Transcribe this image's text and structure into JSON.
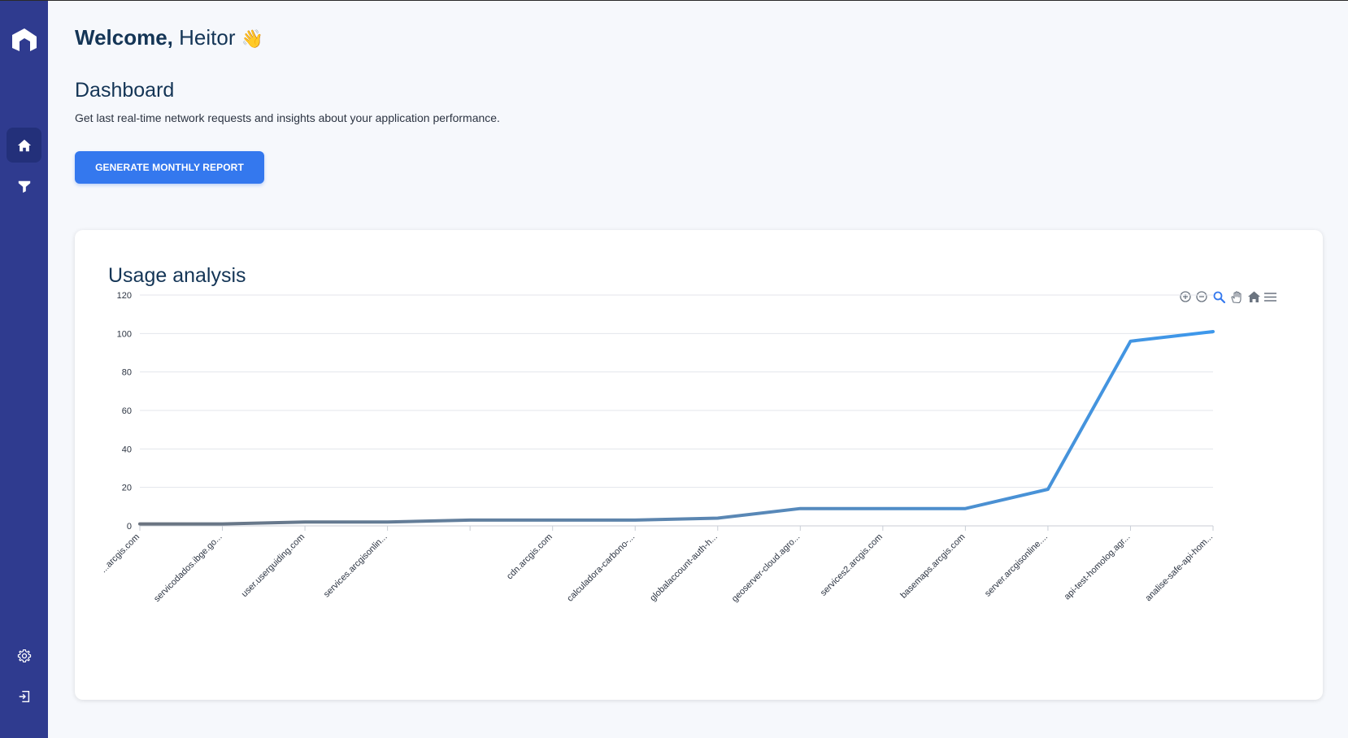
{
  "welcome": {
    "greeting": "Welcome,",
    "name": "Heitor",
    "emoji": "👋"
  },
  "dashboard": {
    "title": "Dashboard",
    "subtitle": "Get last real-time network requests and insights about your application performance.",
    "report_button": "GENERATE MONTHLY REPORT"
  },
  "sidebar": {
    "items": [
      {
        "name": "home",
        "icon": "home-icon",
        "active": true
      },
      {
        "name": "filter",
        "icon": "filter-icon",
        "active": false
      },
      {
        "name": "settings",
        "icon": "gear-icon",
        "active": false
      },
      {
        "name": "logout",
        "icon": "logout-icon",
        "active": false
      }
    ]
  },
  "card": {
    "title": "Usage analysis"
  },
  "toolbar": [
    "zoom-in-icon",
    "zoom-out-icon",
    "selection-zoom-icon",
    "pan-icon",
    "reset-home-icon",
    "menu-icon"
  ],
  "colors": {
    "sidebar": "#2f3b8f",
    "accent": "#3478ee",
    "line_start": "#6b7480",
    "line_end": "#3d98ec",
    "title": "#143556"
  },
  "chart_data": {
    "type": "line",
    "categories": [
      "...arcgis.com",
      "servicodados.ibge.go...",
      "user.userguiding.com",
      "services.arcgisonlin...",
      "",
      "cdn.arcgis.com",
      "calculadora-carbono-...",
      "globalaccount-auth-h...",
      "geoserver-cloud.agro...",
      "services2.arcgis.com",
      "basemaps.arcgis.com",
      "server.arcgisonline....",
      "api-test-homolog.agr...",
      "analise-safe-api-hom..."
    ],
    "values": [
      1,
      1,
      2,
      2,
      3,
      3,
      3,
      4,
      9,
      9,
      9,
      19,
      96,
      101
    ],
    "ylim": [
      0,
      120
    ],
    "yticks": [
      "0",
      "20",
      "40",
      "60",
      "80",
      "100",
      "120"
    ],
    "grid": true
  }
}
